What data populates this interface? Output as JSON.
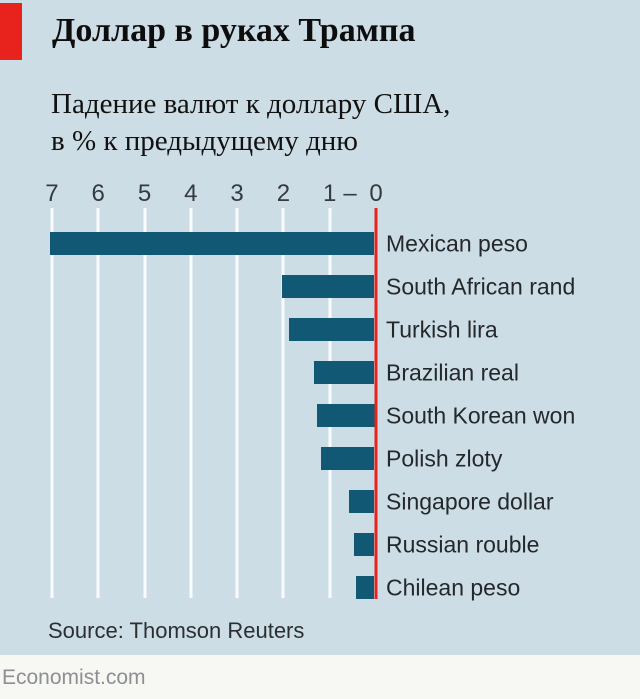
{
  "header": {
    "title": "Доллар в руках Трампа"
  },
  "subtitle": {
    "line1": "Падение валют к доллару США,",
    "line2": "в % к предыдущему дню"
  },
  "chart_data": {
    "type": "bar",
    "orientation": "horizontal-reversed",
    "title": "Доллар в руках Трампа",
    "subtitle": "Падение валют к доллару США, в % к предыдущему дню",
    "categories": [
      "Mexican peso",
      "South African rand",
      "Turkish lira",
      "Brazilian real",
      "South Korean won",
      "Polish zloty",
      "Singapore dollar",
      "Russian rouble",
      "Chilean peso"
    ],
    "values": [
      7.0,
      2.0,
      1.85,
      1.3,
      1.25,
      1.15,
      0.55,
      0.45,
      0.4
    ],
    "xlabel": "",
    "ylabel": "",
    "axis_ticks": [
      7,
      6,
      5,
      4,
      3,
      2,
      1,
      0
    ],
    "axis_dash": "–",
    "xlim": [
      0,
      7
    ],
    "grid": true,
    "gridline_color": "#ffffff",
    "bar_color": "#105873",
    "zero_line_color": "#e8231d",
    "legend": "none"
  },
  "source": "Source: Thomson Reuters",
  "footer": {
    "brand": "Economist.com"
  },
  "colors": {
    "background": "#cddde5",
    "accent_red": "#e8231d",
    "bar": "#105873",
    "footer_background": "#f7f7f4",
    "footer_text": "#8d9093"
  }
}
